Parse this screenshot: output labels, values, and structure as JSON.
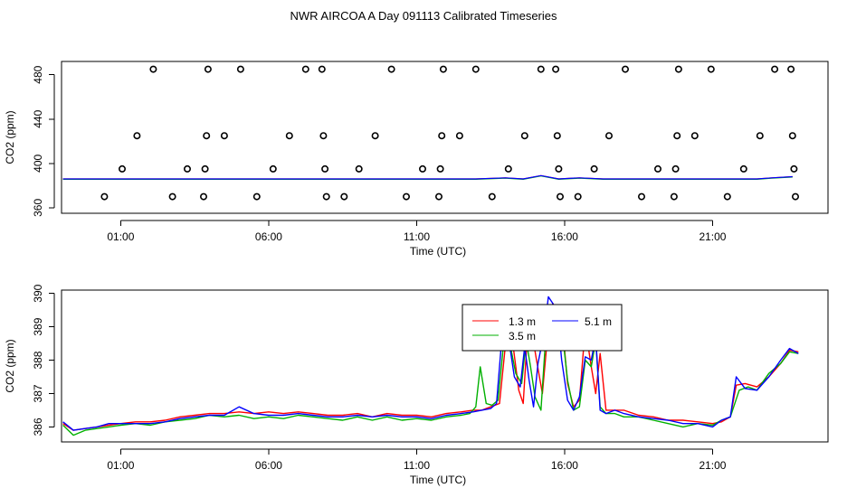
{
  "figure_title": "NWR AIRCOA A  Day 091113  Calibrated Timeseries",
  "colors": {
    "s1": "#ff0000",
    "s2": "#00b000",
    "s3": "#0000ff",
    "axis": "#000000"
  },
  "chart_data": [
    {
      "type": "scatter",
      "title": "",
      "xlabel": "Time (UTC)",
      "ylabel": "CO2 (ppm)",
      "x_unit": "hours (UTC)",
      "xlim": [
        -1.0,
        24.9
      ],
      "ylim": [
        355,
        492
      ],
      "x_ticks": [
        1,
        6,
        11,
        16,
        21
      ],
      "x_tick_labels": [
        "01:00",
        "06:00",
        "11:00",
        "16:00",
        "21:00"
      ],
      "y_ticks": [
        360,
        400,
        440,
        480
      ],
      "y_tick_labels": [
        "360",
        "400",
        "440",
        "480"
      ],
      "points": [
        {
          "x": 0.45,
          "y": 370
        },
        {
          "x": 1.05,
          "y": 395
        },
        {
          "x": 1.55,
          "y": 425
        },
        {
          "x": 2.1,
          "y": 485
        },
        {
          "x": 2.75,
          "y": 370
        },
        {
          "x": 3.25,
          "y": 395
        },
        {
          "x": 3.8,
          "y": 370
        },
        {
          "x": 3.85,
          "y": 395
        },
        {
          "x": 3.9,
          "y": 425
        },
        {
          "x": 3.95,
          "y": 485
        },
        {
          "x": 4.5,
          "y": 425
        },
        {
          "x": 5.05,
          "y": 485
        },
        {
          "x": 5.6,
          "y": 370
        },
        {
          "x": 6.15,
          "y": 395
        },
        {
          "x": 6.7,
          "y": 425
        },
        {
          "x": 7.25,
          "y": 485
        },
        {
          "x": 7.8,
          "y": 485
        },
        {
          "x": 7.85,
          "y": 425
        },
        {
          "x": 7.9,
          "y": 395
        },
        {
          "x": 7.95,
          "y": 370
        },
        {
          "x": 8.55,
          "y": 370
        },
        {
          "x": 9.05,
          "y": 395
        },
        {
          "x": 9.6,
          "y": 425
        },
        {
          "x": 10.15,
          "y": 485
        },
        {
          "x": 10.65,
          "y": 370
        },
        {
          "x": 11.2,
          "y": 395
        },
        {
          "x": 11.75,
          "y": 370
        },
        {
          "x": 11.8,
          "y": 395
        },
        {
          "x": 11.85,
          "y": 425
        },
        {
          "x": 11.9,
          "y": 485
        },
        {
          "x": 12.45,
          "y": 425
        },
        {
          "x": 13.0,
          "y": 485
        },
        {
          "x": 13.55,
          "y": 370
        },
        {
          "x": 14.1,
          "y": 395
        },
        {
          "x": 14.65,
          "y": 425
        },
        {
          "x": 15.2,
          "y": 485
        },
        {
          "x": 15.7,
          "y": 485
        },
        {
          "x": 15.75,
          "y": 425
        },
        {
          "x": 15.8,
          "y": 395
        },
        {
          "x": 15.85,
          "y": 370
        },
        {
          "x": 16.45,
          "y": 370
        },
        {
          "x": 17.0,
          "y": 395
        },
        {
          "x": 17.5,
          "y": 425
        },
        {
          "x": 18.05,
          "y": 485
        },
        {
          "x": 18.6,
          "y": 370
        },
        {
          "x": 19.15,
          "y": 395
        },
        {
          "x": 19.7,
          "y": 370
        },
        {
          "x": 19.75,
          "y": 395
        },
        {
          "x": 19.8,
          "y": 425
        },
        {
          "x": 19.85,
          "y": 485
        },
        {
          "x": 20.4,
          "y": 425
        },
        {
          "x": 20.95,
          "y": 485
        },
        {
          "x": 21.5,
          "y": 370
        },
        {
          "x": 22.05,
          "y": 395
        },
        {
          "x": 22.6,
          "y": 425
        },
        {
          "x": 23.1,
          "y": 485
        },
        {
          "x": 23.65,
          "y": 485
        },
        {
          "x": 23.7,
          "y": 425
        },
        {
          "x": 23.75,
          "y": 395
        },
        {
          "x": 23.8,
          "y": 370
        }
      ],
      "series": [
        {
          "name": "1.3 m",
          "color": "#ff0000"
        },
        {
          "name": "3.5 m",
          "color": "#00b000"
        },
        {
          "name": "5.1 m",
          "color": "#0000ff"
        }
      ],
      "line_x": [
        -0.95,
        13.0,
        14.0,
        14.6,
        15.2,
        15.8,
        16.5,
        17.3,
        18.2,
        19.0,
        20.0,
        21.0,
        21.6,
        22.5,
        23.0,
        23.7
      ],
      "line_y": [
        386,
        386,
        387,
        386,
        389,
        386,
        387,
        386,
        386,
        386,
        386,
        386,
        386,
        386,
        387,
        388
      ]
    },
    {
      "type": "line",
      "title": "",
      "xlabel": "Time (UTC)",
      "ylabel": "CO2 (ppm)",
      "x_unit": "hours (UTC)",
      "xlim": [
        -1.0,
        24.9
      ],
      "ylim": [
        385.55,
        390.1
      ],
      "x_ticks": [
        1,
        6,
        11,
        16,
        21
      ],
      "x_tick_labels": [
        "01:00",
        "06:00",
        "11:00",
        "16:00",
        "21:00"
      ],
      "y_ticks": [
        386,
        387,
        388,
        389,
        390
      ],
      "y_tick_labels": [
        "386",
        "387",
        "388",
        "389",
        "390"
      ],
      "legend": {
        "position": "upper-center"
      },
      "series": [
        {
          "name": "1.3 m",
          "color": "#ff0000",
          "x": [
            -0.95,
            -0.6,
            -0.2,
            0.2,
            0.6,
            1.0,
            1.5,
            2.0,
            2.5,
            3.0,
            3.5,
            4.0,
            4.5,
            5.0,
            5.5,
            6.0,
            6.5,
            7.0,
            7.5,
            8.0,
            8.5,
            9.0,
            9.5,
            10.0,
            10.5,
            11.0,
            11.5,
            12.0,
            12.5,
            12.9,
            13.2,
            13.5,
            13.8,
            14.05,
            14.25,
            14.45,
            14.6,
            14.75,
            14.9,
            15.05,
            15.25,
            15.45,
            15.6,
            15.75,
            15.9,
            16.1,
            16.3,
            16.5,
            16.7,
            16.9,
            17.05,
            17.2,
            17.4,
            17.7,
            18.0,
            18.5,
            19.0,
            19.5,
            20.0,
            20.5,
            21.0,
            21.3,
            21.6,
            21.8,
            22.1,
            22.5,
            22.9,
            23.3,
            23.6,
            23.9
          ],
          "y": [
            386.1,
            385.9,
            385.95,
            386.0,
            386.05,
            386.1,
            386.15,
            386.15,
            386.2,
            386.3,
            386.35,
            386.4,
            386.4,
            386.45,
            386.4,
            386.45,
            386.4,
            386.45,
            386.4,
            386.35,
            386.35,
            386.4,
            386.3,
            386.4,
            386.35,
            386.35,
            386.3,
            386.4,
            386.45,
            386.5,
            386.5,
            386.6,
            386.7,
            388.9,
            388.5,
            387.1,
            386.7,
            388.9,
            388.8,
            388.0,
            387.0,
            389.0,
            389.7,
            389.5,
            389.3,
            387.3,
            386.6,
            386.8,
            389.0,
            387.8,
            387.0,
            388.2,
            386.5,
            386.5,
            386.5,
            386.35,
            386.3,
            386.2,
            386.2,
            386.15,
            386.1,
            386.15,
            386.3,
            387.25,
            387.3,
            387.2,
            387.5,
            387.9,
            388.3,
            388.25
          ]
        },
        {
          "name": "3.5 m",
          "color": "#00b000",
          "x": [
            -0.95,
            -0.6,
            -0.2,
            0.2,
            0.6,
            1.0,
            1.5,
            2.0,
            2.5,
            3.0,
            3.5,
            4.0,
            4.5,
            5.0,
            5.5,
            6.0,
            6.5,
            7.0,
            7.5,
            8.0,
            8.5,
            9.0,
            9.5,
            10.0,
            10.5,
            11.0,
            11.5,
            12.0,
            12.5,
            12.8,
            13.0,
            13.15,
            13.35,
            13.55,
            13.75,
            13.95,
            14.15,
            14.35,
            14.55,
            14.7,
            14.85,
            15.0,
            15.2,
            15.4,
            15.6,
            15.75,
            15.9,
            16.1,
            16.3,
            16.5,
            16.7,
            16.9,
            17.05,
            17.2,
            17.4,
            17.7,
            18.0,
            18.5,
            19.0,
            19.5,
            20.0,
            20.5,
            21.0,
            21.3,
            21.6,
            21.9,
            22.2,
            22.5,
            22.9,
            23.3,
            23.6,
            23.9
          ],
          "y": [
            386.05,
            385.75,
            385.9,
            385.95,
            386.0,
            386.05,
            386.1,
            386.05,
            386.15,
            386.2,
            386.25,
            386.35,
            386.3,
            386.35,
            386.25,
            386.3,
            386.25,
            386.35,
            386.3,
            386.25,
            386.2,
            386.3,
            386.2,
            386.3,
            386.2,
            386.25,
            386.2,
            386.3,
            386.35,
            386.4,
            386.6,
            387.8,
            386.7,
            386.65,
            386.8,
            388.6,
            388.5,
            387.6,
            387.3,
            388.6,
            387.8,
            386.9,
            386.5,
            389.2,
            389.6,
            389.5,
            389.0,
            387.4,
            386.5,
            386.6,
            388.0,
            387.8,
            388.6,
            386.6,
            386.4,
            386.4,
            386.3,
            386.3,
            386.2,
            386.1,
            386.0,
            386.1,
            386.05,
            386.2,
            386.3,
            387.1,
            387.2,
            387.1,
            387.6,
            387.9,
            388.25,
            388.2
          ]
        },
        {
          "name": "5.1 m",
          "color": "#0000ff",
          "x": [
            -0.95,
            -0.6,
            -0.2,
            0.2,
            0.6,
            1.0,
            1.5,
            2.0,
            2.5,
            3.0,
            3.5,
            4.0,
            4.5,
            5.0,
            5.5,
            6.0,
            6.5,
            7.0,
            7.5,
            8.0,
            8.5,
            9.0,
            9.5,
            10.0,
            10.5,
            11.0,
            11.5,
            12.0,
            12.5,
            12.9,
            13.2,
            13.5,
            13.7,
            13.9,
            14.1,
            14.3,
            14.5,
            14.65,
            14.8,
            14.95,
            15.1,
            15.3,
            15.45,
            15.6,
            15.75,
            15.9,
            16.1,
            16.3,
            16.5,
            16.7,
            16.9,
            17.05,
            17.2,
            17.4,
            17.7,
            18.0,
            18.5,
            19.0,
            19.5,
            20.0,
            20.5,
            21.0,
            21.3,
            21.6,
            21.8,
            22.1,
            22.5,
            22.9,
            23.3,
            23.6,
            23.9
          ],
          "y": [
            386.15,
            385.9,
            385.95,
            386.0,
            386.1,
            386.1,
            386.1,
            386.1,
            386.15,
            386.25,
            386.3,
            386.35,
            386.35,
            386.6,
            386.4,
            386.35,
            386.35,
            386.4,
            386.35,
            386.3,
            386.3,
            386.35,
            386.3,
            386.35,
            386.3,
            386.3,
            386.25,
            386.35,
            386.4,
            386.45,
            386.5,
            386.55,
            386.7,
            388.9,
            388.7,
            387.5,
            387.2,
            388.4,
            387.4,
            386.6,
            387.9,
            388.8,
            389.9,
            389.7,
            389.4,
            388.0,
            386.8,
            386.5,
            386.9,
            388.1,
            388.0,
            388.7,
            386.5,
            386.4,
            386.5,
            386.4,
            386.3,
            386.25,
            386.2,
            386.1,
            386.1,
            386.0,
            386.2,
            386.3,
            387.5,
            387.15,
            387.1,
            387.5,
            388.0,
            388.35,
            388.2
          ]
        }
      ]
    }
  ]
}
